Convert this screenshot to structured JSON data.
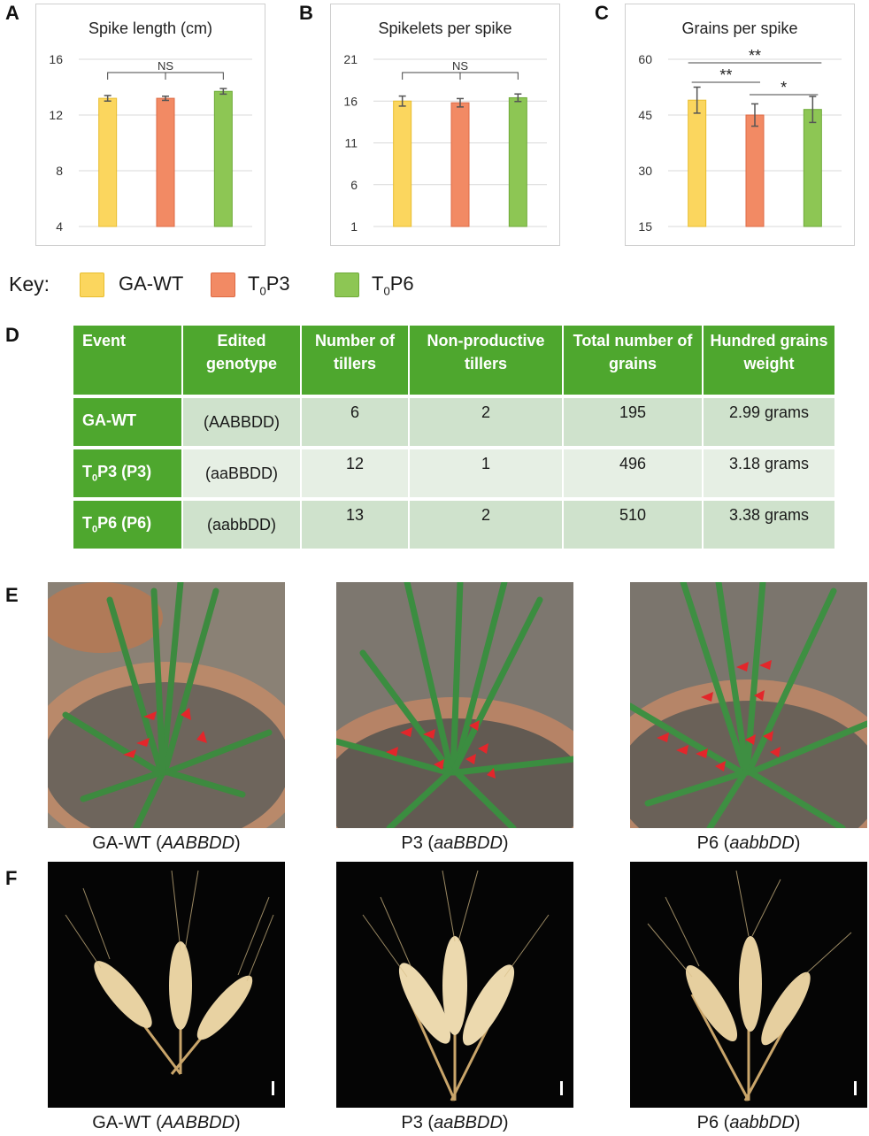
{
  "panels": {
    "a": "A",
    "b": "B",
    "c": "C",
    "d": "D",
    "e": "E",
    "f": "F"
  },
  "colors": {
    "ga_wt": "#fbd65e",
    "t0p3": "#f28a64",
    "t0p6": "#8dc654",
    "table_header": "#4ea72e",
    "arrow": "#e3262b"
  },
  "key": {
    "title": "Key:",
    "items": [
      {
        "label": "GA-WT",
        "sub": "",
        "suffix": ""
      },
      {
        "label": "T",
        "sub": "0",
        "suffix": "P3"
      },
      {
        "label": "T",
        "sub": "0",
        "suffix": "P6"
      }
    ]
  },
  "chart_data": [
    {
      "type": "bar",
      "title": "Spike length (cm)",
      "categories": [
        "GA-WT",
        "T0P3",
        "T0P6"
      ],
      "values": [
        13.2,
        13.2,
        13.7
      ],
      "errors": [
        0.2,
        0.15,
        0.2
      ],
      "ylim": [
        4,
        16
      ],
      "yticks": [
        "4",
        "8",
        "12",
        "16"
      ],
      "significance": [
        {
          "from": 0,
          "to": 2,
          "label": "NS",
          "center_tick": 1
        }
      ]
    },
    {
      "type": "bar",
      "title": "Spikelets per spike",
      "categories": [
        "GA-WT",
        "T0P3",
        "T0P6"
      ],
      "values": [
        16.0,
        15.8,
        16.4
      ],
      "errors": [
        0.6,
        0.5,
        0.45
      ],
      "ylim": [
        1,
        21
      ],
      "yticks": [
        "1",
        "6",
        "11",
        "16",
        "21"
      ],
      "significance": [
        {
          "from": 0,
          "to": 2,
          "label": "NS",
          "center_tick": 1
        }
      ]
    },
    {
      "type": "bar",
      "title": "Grains per spike",
      "categories": [
        "GA-WT",
        "T0P3",
        "T0P6"
      ],
      "values": [
        49,
        45,
        46.5
      ],
      "errors": [
        3.5,
        3.0,
        3.5
      ],
      "ylim": [
        15,
        60
      ],
      "yticks": [
        "15",
        "30",
        "45",
        "60"
      ],
      "significance": [
        {
          "from": 0,
          "to": 2,
          "label": "**"
        },
        {
          "from": 0,
          "to": 1,
          "label": "**"
        },
        {
          "from": 1,
          "to": 2,
          "label": "*"
        }
      ]
    }
  ],
  "table": {
    "headers": [
      "Event",
      "Edited genotype",
      "Number of tillers",
      "Non-productive tillers",
      "Total number of grains",
      "Hundred grains weight"
    ],
    "rows": [
      {
        "event": "GA-WT",
        "event_sub": "",
        "event_suffix": "",
        "genotype": "(AABBDD)",
        "tillers": "6",
        "nonproductive": "2",
        "grains": "195",
        "weight": "2.99 grams"
      },
      {
        "event": "T",
        "event_sub": "0",
        "event_suffix": "P3 (P3)",
        "genotype": "(aaBBDD)",
        "tillers": "12",
        "nonproductive": "1",
        "grains": "496",
        "weight": "3.18 grams"
      },
      {
        "event": "T",
        "event_sub": "0",
        "event_suffix": "P6 (P6)",
        "genotype": "(aabbDD)",
        "tillers": "13",
        "nonproductive": "2",
        "grains": "510",
        "weight": "3.38 grams"
      }
    ]
  },
  "photos_e": [
    {
      "prefix": "GA-WT (",
      "genotype": "AABBDD",
      "suffix": ")"
    },
    {
      "prefix": "P3 (",
      "genotype": "aaBBDD",
      "suffix": ")"
    },
    {
      "prefix": "P6 (",
      "genotype": "aabbDD",
      "suffix": ")"
    }
  ],
  "photos_f": [
    {
      "prefix": "GA-WT (",
      "genotype": "AABBDD",
      "suffix": ")"
    },
    {
      "prefix": "P3 (",
      "genotype": "aaBBDD",
      "suffix": ")"
    },
    {
      "prefix": "P6 (",
      "genotype": "aabbDD",
      "suffix": ")"
    }
  ]
}
